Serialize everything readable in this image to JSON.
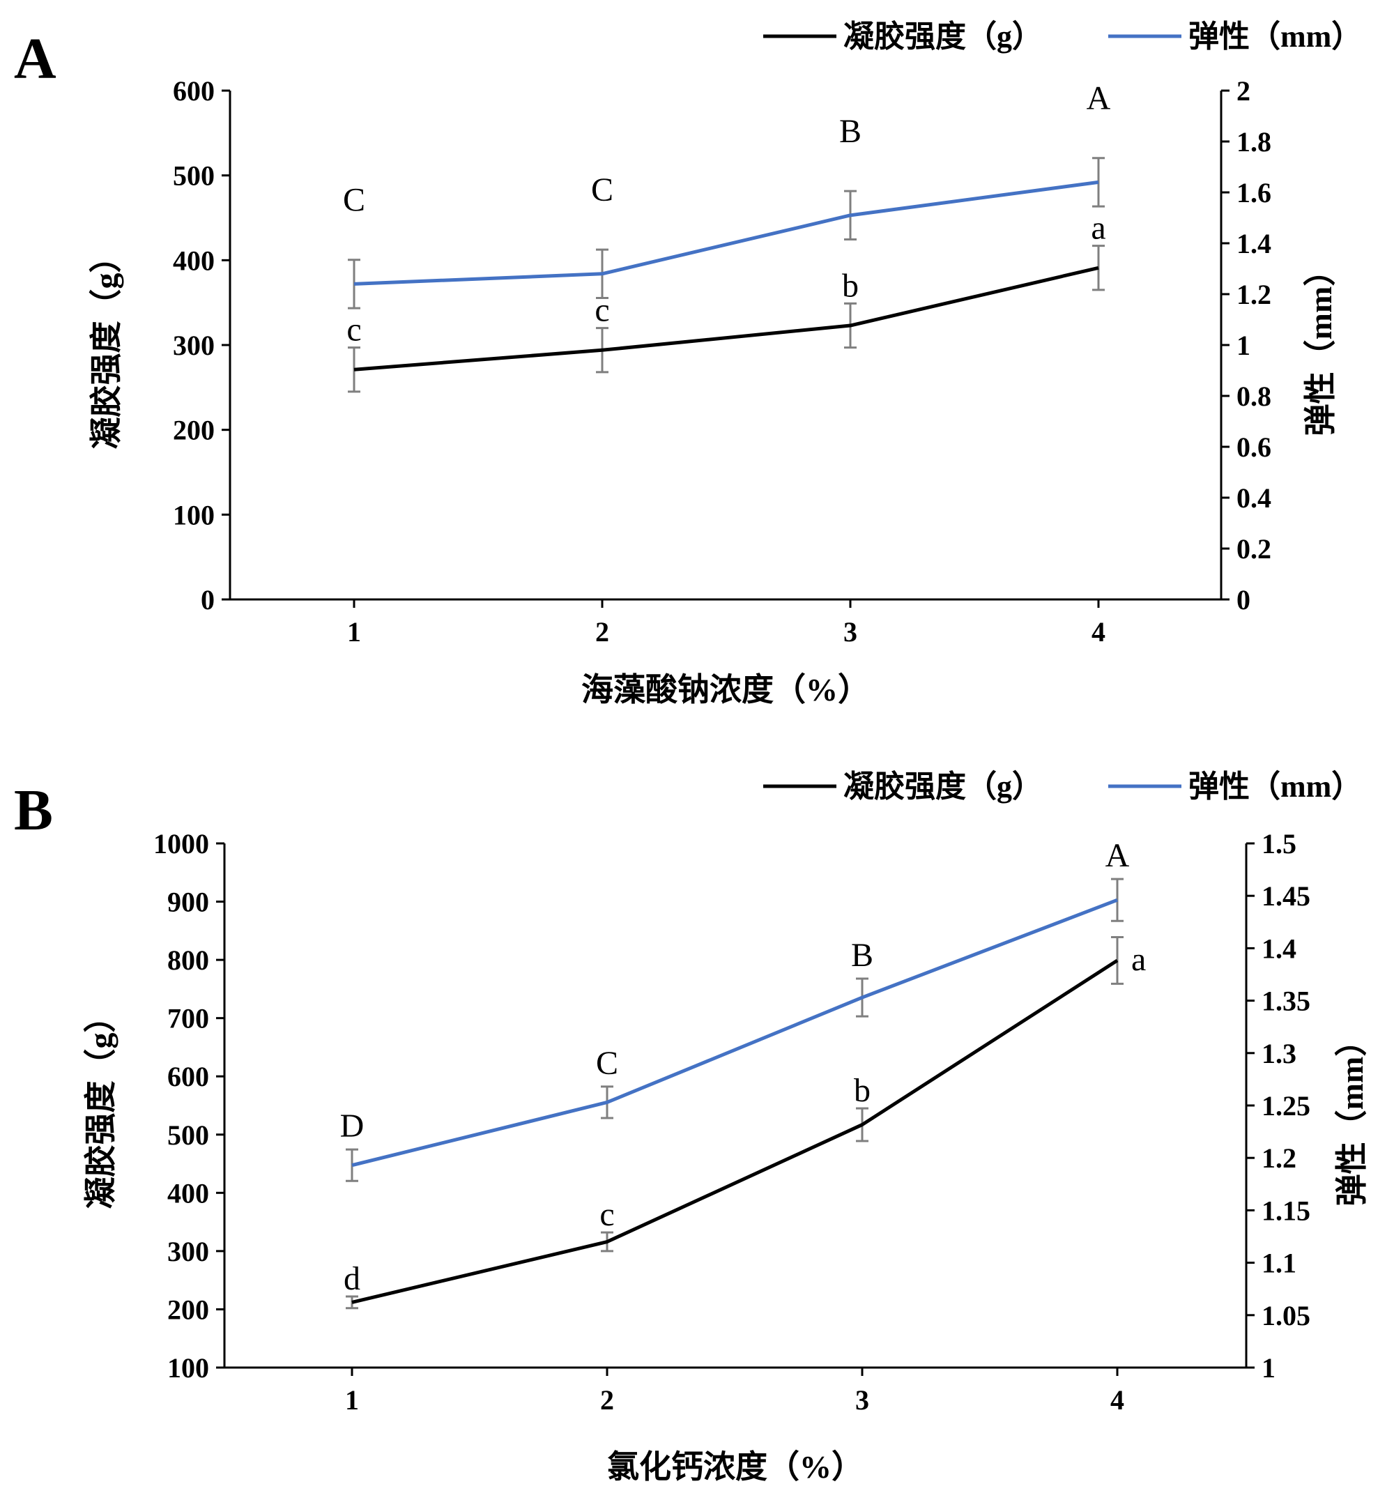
{
  "chart_data": [
    {
      "panel": "A",
      "type": "line",
      "xlabel": "海藻酸钠浓度（%）",
      "ylabel_left": "凝胶强度（g）",
      "ylabel_right": "弹性（mm）",
      "categories": [
        "1",
        "2",
        "3",
        "4"
      ],
      "y_left_range": [
        0,
        600
      ],
      "y_left_ticks": [
        "0",
        "100",
        "200",
        "300",
        "400",
        "500",
        "600"
      ],
      "y_right_range": [
        0,
        2
      ],
      "y_right_ticks": [
        "0",
        "0.2",
        "0.4",
        "0.6",
        "0.8",
        "1",
        "1.2",
        "1.4",
        "1.6",
        "1.8",
        "2"
      ],
      "legend_position": "top-right",
      "series": [
        {
          "name": "凝胶强度（g）",
          "axis": "left",
          "color": "#000000",
          "values": [
            271,
            294,
            323,
            391
          ],
          "errors": [
            26,
            26,
            26,
            26
          ],
          "labels": [
            "c",
            "c",
            "b",
            "a"
          ]
        },
        {
          "name": "弹性（mm）",
          "axis": "right",
          "color": "#4472c4",
          "values": [
            1.24,
            1.28,
            1.51,
            1.64
          ],
          "errors": [
            0.095,
            0.095,
            0.095,
            0.095
          ],
          "labels": [
            "C",
            "C",
            "B",
            "A"
          ]
        }
      ]
    },
    {
      "panel": "B",
      "type": "line",
      "xlabel": "氯化钙浓度（%）",
      "ylabel_left": "凝胶强度（g）",
      "ylabel_right": "弹性（mm）",
      "categories": [
        "1",
        "2",
        "3",
        "4"
      ],
      "y_left_range": [
        100,
        1000
      ],
      "y_left_ticks": [
        "100",
        "200",
        "300",
        "400",
        "500",
        "600",
        "700",
        "800",
        "900",
        "1000"
      ],
      "y_right_range": [
        1,
        1.5
      ],
      "y_right_ticks": [
        "1",
        "1.05",
        "1.1",
        "1.15",
        "1.2",
        "1.25",
        "1.3",
        "1.35",
        "1.4",
        "1.45",
        "1.5"
      ],
      "legend_position": "top-right",
      "series": [
        {
          "name": "凝胶强度（g）",
          "axis": "left",
          "color": "#000000",
          "values": [
            212,
            316,
            517,
            799
          ],
          "errors": [
            10,
            16,
            28,
            40
          ],
          "labels": [
            "d",
            "c",
            "b",
            "a"
          ]
        },
        {
          "name": "弹性（mm）",
          "axis": "right",
          "color": "#4472c4",
          "values": [
            1.193,
            1.253,
            1.353,
            1.446
          ],
          "errors": [
            0.015,
            0.015,
            0.018,
            0.02
          ],
          "labels": [
            "D",
            "C",
            "B",
            "A"
          ]
        }
      ]
    }
  ]
}
